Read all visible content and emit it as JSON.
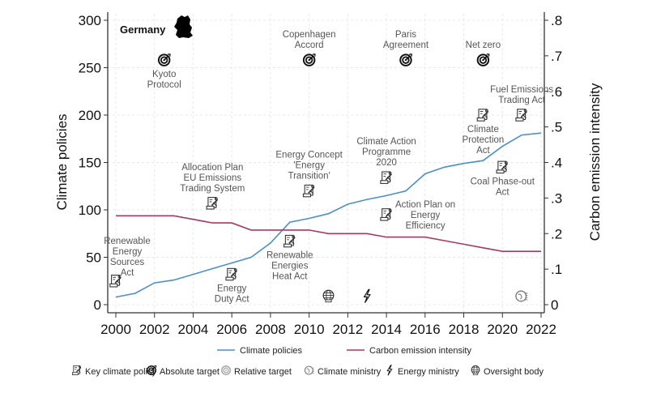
{
  "chart_data": {
    "type": "line",
    "title": "Germany",
    "x": [
      2000,
      2001,
      2002,
      2003,
      2004,
      2005,
      2006,
      2007,
      2008,
      2009,
      2010,
      2011,
      2012,
      2013,
      2014,
      2015,
      2016,
      2017,
      2018,
      2019,
      2020,
      2021,
      2022
    ],
    "series": [
      {
        "name": "Climate policies",
        "axis": "left",
        "color": "#4a90c8",
        "values": [
          8,
          12,
          23,
          26,
          32,
          38,
          44,
          50,
          65,
          87,
          91,
          96,
          106,
          111,
          115,
          120,
          138,
          145,
          149,
          152,
          167,
          179,
          181
        ]
      },
      {
        "name": "Carbon emission intensity",
        "axis": "right",
        "color": "#a83a5e",
        "values": [
          0.25,
          0.25,
          0.25,
          0.25,
          0.24,
          0.23,
          0.23,
          0.21,
          0.21,
          0.21,
          0.21,
          0.2,
          0.2,
          0.2,
          0.19,
          0.19,
          0.19,
          0.18,
          0.17,
          0.16,
          0.15,
          0.15,
          0.15
        ]
      }
    ],
    "xlabel": "",
    "ylabel_left": "Climate policies",
    "ylabel_right": "Carbon emission intensity",
    "xlim": [
      2000,
      2022
    ],
    "ylim_left": [
      0,
      300
    ],
    "ylim_right": [
      0,
      0.8
    ],
    "xticks": [
      "2000",
      "2002",
      "2004",
      "2006",
      "2008",
      "2010",
      "2012",
      "2014",
      "2016",
      "2018",
      "2020",
      "2022"
    ],
    "yticks_left": [
      "0",
      "50",
      "100",
      "150",
      "200",
      "250",
      "300"
    ],
    "yticks_right": [
      "0",
      ".1",
      ".2",
      ".3",
      ".4",
      ".5",
      ".6",
      ".7",
      ".8"
    ],
    "grid": true,
    "legend_position": "bottom",
    "legend": [
      "Climate policies",
      "Carbon emission intensity"
    ],
    "icon_legend": [
      {
        "icon": "key-climate-policy-icon",
        "label": "Key climate policy"
      },
      {
        "icon": "absolute-target-icon",
        "label": "Absolute target"
      },
      {
        "icon": "relative-target-icon",
        "label": "Relative target"
      },
      {
        "icon": "climate-ministry-icon",
        "label": "Climate ministry"
      },
      {
        "icon": "energy-ministry-icon",
        "label": "Energy ministry"
      },
      {
        "icon": "oversight-body-icon",
        "label": "Oversight body"
      }
    ],
    "annotations": [
      {
        "year": 2000,
        "y": 25,
        "icon": "key-climate-policy-icon",
        "label_lines": [
          "Renewable",
          "Energy",
          "Sources",
          "Act"
        ],
        "label_pos": "above-right"
      },
      {
        "year": 2002.5,
        "y": 258,
        "icon": "absolute-target-icon",
        "label_lines": [
          "Kyoto",
          "Protocol"
        ],
        "label_pos": "below"
      },
      {
        "year": 2005,
        "y": 107,
        "icon": "key-climate-policy-icon",
        "label_lines": [
          "Allocation Plan",
          "EU Emissions",
          "Trading System"
        ],
        "label_pos": "above"
      },
      {
        "year": 2006,
        "y": 32,
        "icon": "key-climate-policy-icon",
        "label_lines": [
          "Energy",
          "Duty Act"
        ],
        "label_pos": "below"
      },
      {
        "year": 2009,
        "y": 67,
        "icon": "key-climate-policy-icon",
        "label_lines": [
          "Renewable",
          "Energies",
          "Heat Act"
        ],
        "label_pos": "below"
      },
      {
        "year": 2010,
        "y": 120,
        "icon": "key-climate-policy-icon",
        "label_lines": [
          "Energy Concept",
          "'Energy",
          "Transition'"
        ],
        "label_pos": "above"
      },
      {
        "year": 2010,
        "y": 258,
        "icon": "absolute-target-icon",
        "label_lines": [
          "Copenhagen",
          "Accord"
        ],
        "label_pos": "above"
      },
      {
        "year": 2011,
        "y": 9,
        "icon": "oversight-body-icon",
        "label_lines": [],
        "label_pos": "none"
      },
      {
        "year": 2013,
        "y": 9,
        "icon": "energy-ministry-icon",
        "label_lines": [],
        "label_pos": "none"
      },
      {
        "year": 2014,
        "y": 134,
        "icon": "key-climate-policy-icon",
        "label_lines": [
          "Climate Action",
          "Programme",
          "2020"
        ],
        "label_pos": "above"
      },
      {
        "year": 2014,
        "y": 95,
        "icon": "key-climate-policy-icon",
        "label_lines": [
          "Action Plan on",
          "Energy",
          "Efficiency"
        ],
        "label_pos": "right"
      },
      {
        "year": 2015,
        "y": 258,
        "icon": "absolute-target-icon",
        "label_lines": [
          "Paris",
          "Agreement"
        ],
        "label_pos": "above"
      },
      {
        "year": 2019,
        "y": 200,
        "icon": "key-climate-policy-icon",
        "label_lines": [
          "Climate",
          "Protection",
          "Act"
        ],
        "label_pos": "below"
      },
      {
        "year": 2019,
        "y": 258,
        "icon": "absolute-target-icon",
        "label_lines": [
          "Net zero"
        ],
        "label_pos": "above"
      },
      {
        "year": 2020,
        "y": 145,
        "icon": "key-climate-policy-icon",
        "label_lines": [
          "Coal Phase-out",
          "Act"
        ],
        "label_pos": "below"
      },
      {
        "year": 2021,
        "y": 200,
        "icon": "key-climate-policy-icon",
        "label_lines": [
          "Fuel Emissions",
          "Trading Act"
        ],
        "label_pos": "above"
      },
      {
        "year": 2021,
        "y": 9,
        "icon": "climate-ministry-icon",
        "label_lines": [],
        "label_pos": "none"
      }
    ]
  }
}
